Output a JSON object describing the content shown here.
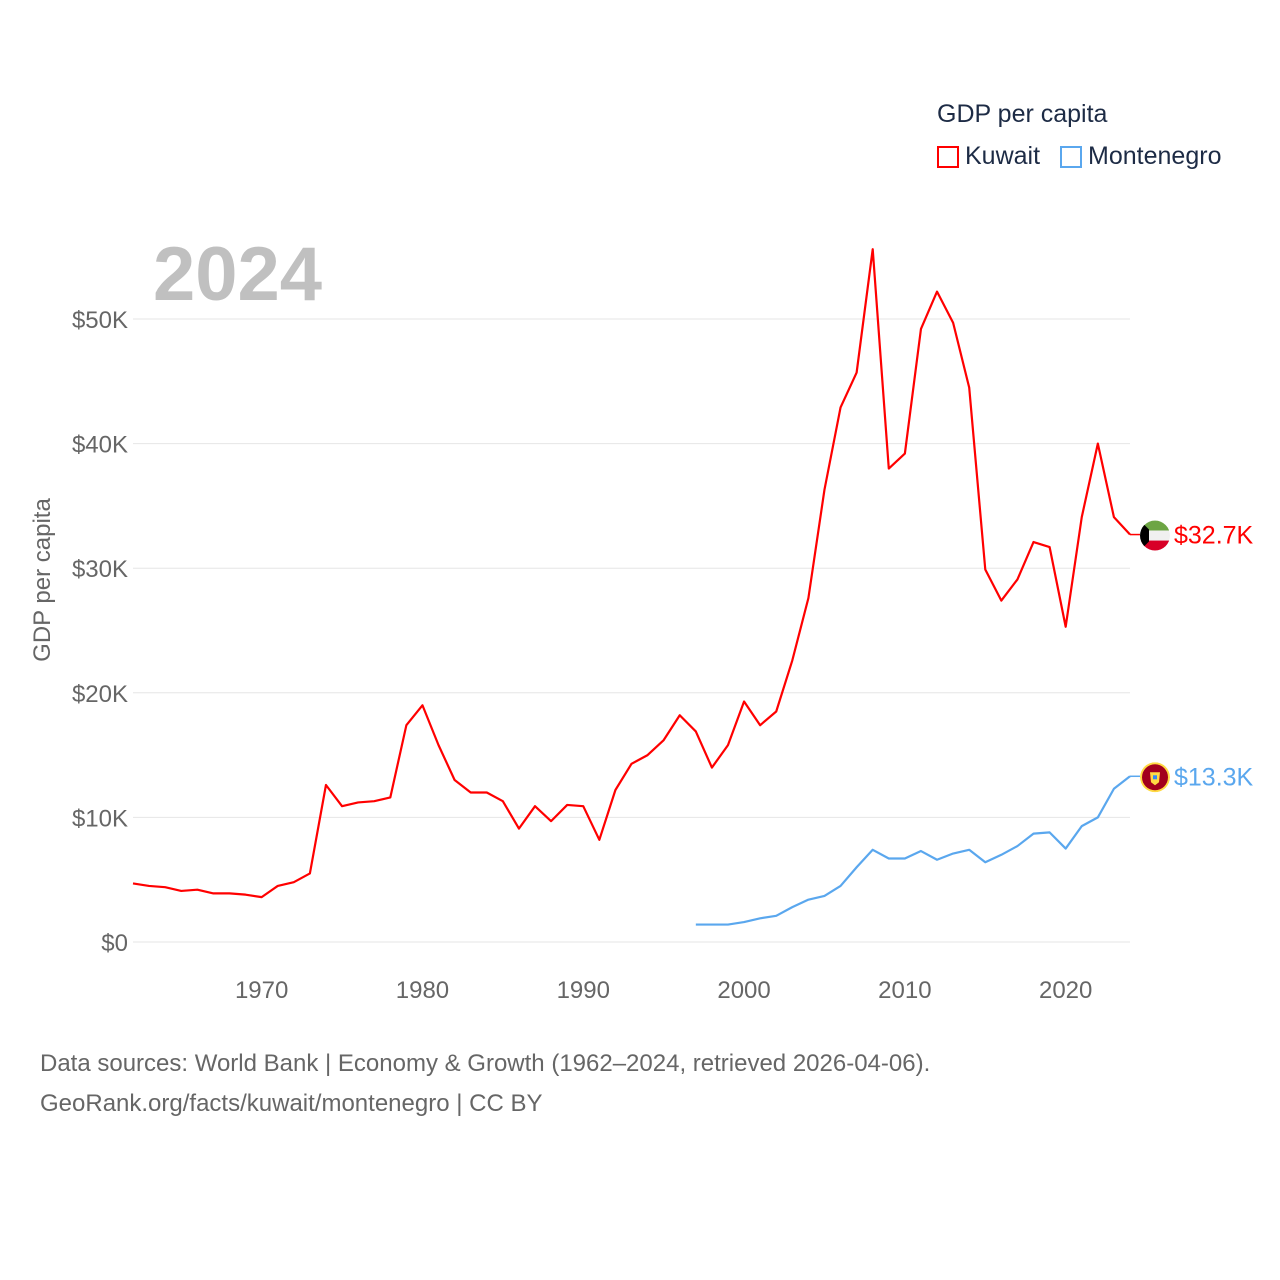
{
  "chart_data": {
    "type": "line",
    "title": "",
    "year_label": "2024",
    "ylabel": "GDP per capita",
    "xlabel": "",
    "xlim": [
      1962,
      2024
    ],
    "ylim": [
      0,
      50000
    ],
    "yticks": [
      0,
      10000,
      20000,
      30000,
      40000,
      50000
    ],
    "ytick_labels": [
      "$0",
      "$10K",
      "$20K",
      "$30K",
      "$40K",
      "$50K"
    ],
    "xticks": [
      1970,
      1980,
      1990,
      2000,
      2010,
      2020
    ],
    "xtick_labels": [
      "1970",
      "1980",
      "1990",
      "2000",
      "2010",
      "2020"
    ],
    "grid": true,
    "legend_title": "GDP per capita",
    "legend_position": "top-right",
    "series": [
      {
        "name": "Kuwait",
        "color": "#ff0000",
        "start_year": 1962,
        "end_label": "$32.7K",
        "flag": "kuwait-flag",
        "values": [
          4700,
          4500,
          4400,
          4100,
          4200,
          3900,
          3900,
          3800,
          3600,
          4500,
          4800,
          5500,
          12600,
          10900,
          11200,
          11300,
          11600,
          17400,
          19000,
          15800,
          13000,
          12000,
          12000,
          11300,
          9100,
          10900,
          9700,
          11000,
          10900,
          8200,
          12200,
          14300,
          15000,
          16200,
          18200,
          16900,
          14000,
          15800,
          19300,
          17400,
          18500,
          22600,
          27600,
          36300,
          42900,
          45700,
          55600,
          38000,
          39200,
          49200,
          52200,
          49700,
          44500,
          29900,
          27400,
          29100,
          32100,
          31700,
          25300,
          34100,
          40000,
          34100,
          32700
        ]
      },
      {
        "name": "Montenegro",
        "color": "#5aa7ee",
        "start_year": 1997,
        "end_label": "$13.3K",
        "flag": "montenegro-flag",
        "values": [
          1400,
          1400,
          1400,
          1600,
          1900,
          2100,
          2800,
          3400,
          3700,
          4500,
          6000,
          7400,
          6700,
          6700,
          7300,
          6600,
          7100,
          7400,
          6400,
          7000,
          7700,
          8700,
          8800,
          7500,
          9300,
          10000,
          12300,
          13300
        ]
      }
    ]
  },
  "footer": {
    "line1": "Data sources: World Bank | Economy & Growth (1962–2024, retrieved 2026-04-06).",
    "line2": "GeoRank.org/facts/kuwait/montenegro | CC BY"
  }
}
